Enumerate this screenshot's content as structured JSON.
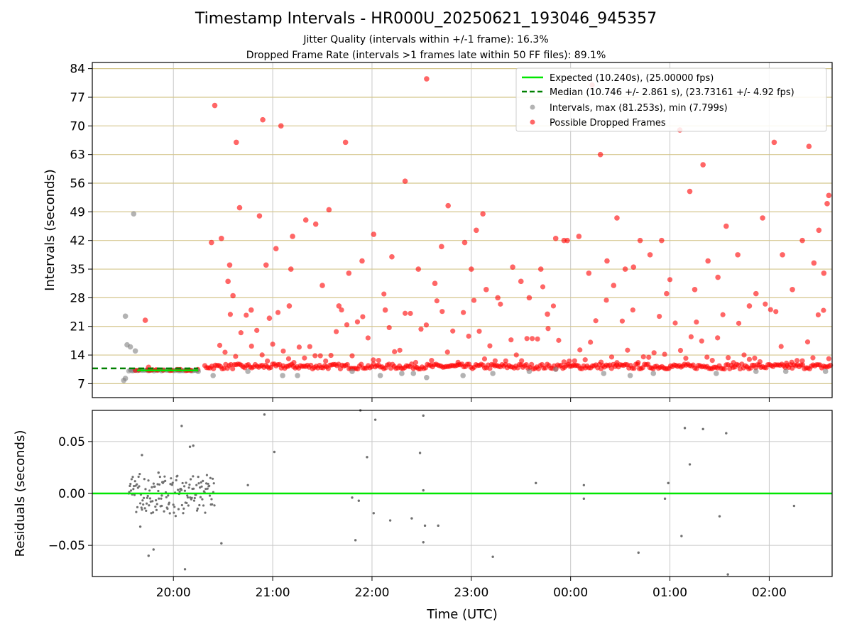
{
  "chart_data": [
    {
      "type": "scatter",
      "title": "Timestamp Intervals - HR000U_20250621_193046_945357",
      "subtitle_lines": [
        "Jitter Quality (intervals within +/-1 frame): 16.3%",
        "Dropped Frame Rate (intervals >1 frames late within 50 FF files): 89.1%"
      ],
      "ylabel": "Intervals (seconds)",
      "xlabel": "",
      "ylim": [
        3.6,
        85.5
      ],
      "yticks": [
        7,
        14,
        21,
        28,
        35,
        42,
        49,
        56,
        63,
        70,
        77,
        84
      ],
      "ytick_labels": [
        "7",
        "14",
        "21",
        "28",
        "35",
        "42",
        "49",
        "56",
        "63",
        "70",
        "77",
        "84"
      ],
      "grid": true,
      "legend_position": "top-right",
      "legend": [
        {
          "label": "Expected (10.240s), (25.00000 fps)",
          "color": "#00e600",
          "style": "solid-line"
        },
        {
          "label": "Median (10.746 +/- 2.861 s), (23.73161 +/- 4.92 fps)",
          "color": "#008000",
          "style": "dashed-line"
        },
        {
          "label": "Intervals, max (81.253s), min (7.799s)",
          "color": "#808080",
          "style": "dot"
        },
        {
          "label": "Possible Dropped Frames",
          "color": "#ff0000",
          "style": "dot"
        }
      ],
      "expected_interval": 10.24,
      "median_interval": 10.746,
      "series": [
        {
          "name": "Possible Dropped Frames",
          "color": "#ff0000",
          "x": [
            "19:43",
            "19:45",
            "20:23",
            "20:25",
            "20:29",
            "20:33",
            "20:34",
            "20:36",
            "20:38",
            "20:40",
            "20:47",
            "20:52",
            "20:54",
            "20:56",
            "20:58",
            "21:02",
            "21:05",
            "21:10",
            "21:11",
            "21:12",
            "21:20",
            "21:26",
            "21:30",
            "21:34",
            "21:40",
            "21:44",
            "21:46",
            "21:54",
            "22:01",
            "22:08",
            "22:12",
            "22:20",
            "22:28",
            "22:33",
            "22:38",
            "22:42",
            "22:46",
            "22:56",
            "23:00",
            "23:03",
            "23:07",
            "23:09",
            "23:16",
            "23:25",
            "23:30",
            "23:35",
            "23:42",
            "23:46",
            "23:51",
            "23:56",
            "23:58",
            "00:05",
            "00:11",
            "00:13",
            "00:18",
            "00:22",
            "00:26",
            "00:28",
            "00:33",
            "00:38",
            "00:42",
            "00:48",
            "00:55",
            "00:58",
            "01:06",
            "01:12",
            "01:15",
            "01:20",
            "01:23",
            "01:29",
            "01:34",
            "01:41",
            "01:48",
            "01:52",
            "01:56",
            "02:03",
            "02:08",
            "02:14",
            "02:20",
            "02:24",
            "02:27",
            "02:30",
            "02:33",
            "02:35",
            "02:36"
          ],
          "y": [
            22.5,
            11,
            41.5,
            75,
            42.5,
            32,
            36,
            28.5,
            66,
            50,
            25,
            48,
            71.5,
            36,
            23,
            40,
            70,
            26,
            35,
            43,
            47,
            46,
            31,
            49.5,
            26,
            66,
            34,
            37,
            43.5,
            25,
            38,
            56.5,
            35,
            81.5,
            31.5,
            40.5,
            50.5,
            41.5,
            35,
            44.5,
            48.5,
            30,
            28,
            35.5,
            32,
            28,
            35,
            24,
            42.5,
            42,
            42,
            43,
            34,
            80,
            63,
            37,
            31,
            47.5,
            35,
            35.5,
            42,
            38.5,
            42,
            29,
            69,
            54,
            30,
            60.5,
            37,
            33,
            45.5,
            38.5,
            26,
            29,
            47.5,
            66,
            38.5,
            30,
            42,
            65,
            36.5,
            44.5,
            34,
            51,
            53
          ]
        },
        {
          "name": "Intervals, max (81.253s), min (7.799s)",
          "color": "#808080",
          "x": [
            "19:30",
            "19:31",
            "19:31",
            "19:32",
            "19:34",
            "19:36",
            "19:37",
            "20:15",
            "20:24",
            "20:45",
            "21:06",
            "21:15",
            "21:48",
            "22:05",
            "22:18",
            "22:25",
            "22:33",
            "22:55",
            "23:13",
            "23:35",
            "23:51",
            "00:20",
            "00:36",
            "00:50",
            "01:28",
            "01:52",
            "02:10",
            "02:34"
          ],
          "y": [
            7.8,
            8.3,
            23.5,
            16.5,
            16,
            48.5,
            15,
            10,
            9,
            10,
            9,
            9,
            10,
            9,
            9.5,
            9.5,
            8.5,
            9,
            9.5,
            10,
            10.5,
            9.5,
            9,
            9.5,
            9.5,
            10,
            10,
            10
          ]
        }
      ]
    },
    {
      "type": "scatter",
      "ylabel": "Residuals (seconds)",
      "xlabel": "Time (UTC)",
      "ylim": [
        -0.08,
        0.08
      ],
      "yticks": [
        -0.05,
        0.0,
        0.05
      ],
      "ytick_labels": [
        "−0.05",
        "0.00",
        "0.05"
      ],
      "xlim": [
        "19:11",
        "02:38"
      ],
      "xticks": [
        "20:00",
        "21:00",
        "22:00",
        "23:00",
        "00:00",
        "01:00",
        "02:00"
      ],
      "grid": true,
      "series": [
        {
          "name": "",
          "color": "#707070",
          "x": [
            "19:40",
            "19:41",
            "19:45",
            "19:48",
            "19:51",
            "19:53",
            "20:05",
            "20:07",
            "20:10",
            "20:12",
            "20:29",
            "20:45",
            "20:55",
            "21:01",
            "21:48",
            "21:50",
            "21:52",
            "21:53",
            "21:57",
            "22:01",
            "22:02",
            "22:11",
            "22:24",
            "22:29",
            "22:31",
            "22:31",
            "22:31",
            "22:32",
            "22:40",
            "23:13",
            "23:39",
            "00:08",
            "00:08",
            "00:41",
            "00:57",
            "00:59",
            "01:07",
            "01:09",
            "01:12",
            "01:20",
            "01:30",
            "01:34",
            "01:35",
            "02:15"
          ],
          "y": [
            -0.032,
            0.037,
            -0.06,
            -0.054,
            0.02,
            -0.002,
            0.065,
            -0.073,
            0.045,
            0.046,
            -0.048,
            0.008,
            0.076,
            0.04,
            -0.004,
            -0.045,
            -0.007,
            0.08,
            0.035,
            -0.019,
            0.071,
            -0.026,
            -0.024,
            0.039,
            0.003,
            0.075,
            -0.047,
            -0.031,
            -0.031,
            -0.061,
            0.01,
            0.008,
            -0.005,
            -0.057,
            -0.005,
            0.01,
            -0.041,
            0.063,
            0.028,
            0.062,
            -0.022,
            0.058,
            -0.078,
            -0.012
          ]
        }
      ],
      "reference_line": 0.0
    }
  ]
}
